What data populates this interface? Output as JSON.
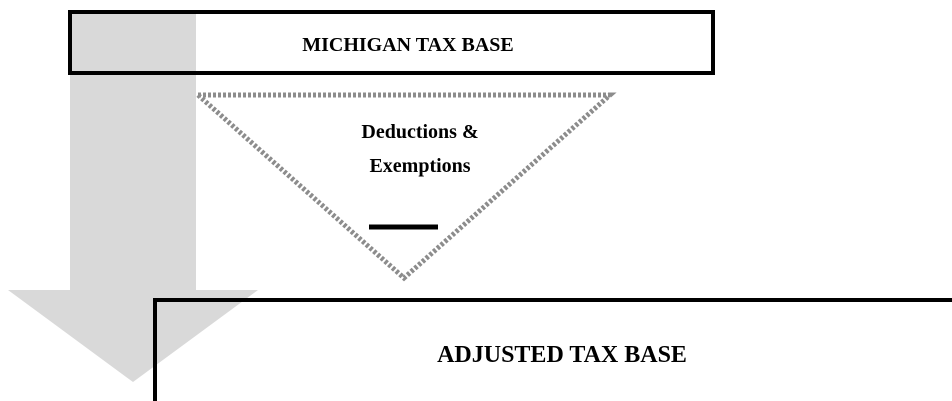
{
  "boxes": [
    {
      "label": "MICHIGAN TAX BASE"
    },
    {
      "label": "ADJUSTED TAX BASE"
    }
  ],
  "triangle": {
    "label_lines": [
      "Deductions &",
      "Exemptions"
    ]
  }
}
